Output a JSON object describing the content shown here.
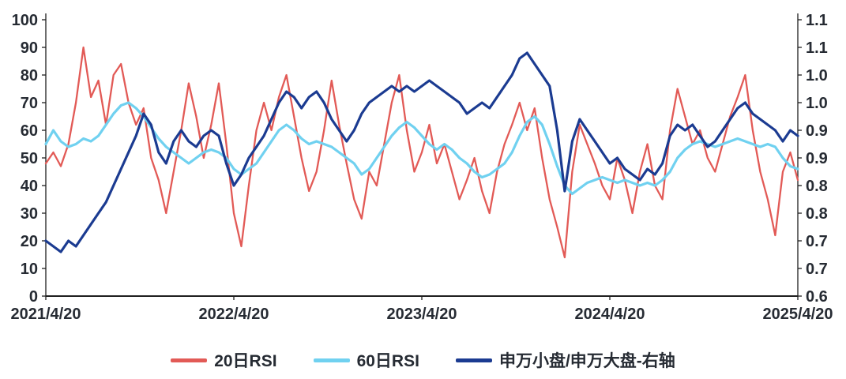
{
  "figure": {
    "background": "#ffffff"
  },
  "chart_data": {
    "type": "line",
    "title": "",
    "grid": false,
    "legend_position": "bottom",
    "axis_text_color": "#262b33",
    "axis_line_color": "#1f1f1f",
    "x_axis": {
      "tick_labels": [
        "2021/4/20",
        "2022/4/20",
        "2023/4/20",
        "2024/4/20",
        "2025/4/20"
      ],
      "tick_positions": [
        0,
        0.25,
        0.5,
        0.75,
        1
      ]
    },
    "left_axis": {
      "min": 0,
      "max": 100,
      "tick_labels_top_to_bottom": [
        "100",
        "90",
        "80",
        "70",
        "60",
        "50",
        "40",
        "30",
        "20",
        "10",
        "0"
      ]
    },
    "right_axis": {
      "min": 0.6,
      "max": 1.1,
      "tick_labels_top_to_bottom": [
        "1.1",
        "1.1",
        "1.0",
        "1.0",
        "0.9",
        "0.9",
        "0.8",
        "0.8",
        "0.7",
        "0.7",
        "0.6"
      ]
    },
    "x_spacing": "uniform, evenly spaced samples across the full x range",
    "series": [
      {
        "id": "rsi20",
        "name": "20日RSI",
        "axis": "left",
        "color": "#e25a56",
        "line_width": 2.3,
        "values": [
          48,
          52,
          47,
          55,
          70,
          90,
          72,
          78,
          62,
          80,
          84,
          70,
          62,
          68,
          50,
          42,
          30,
          45,
          60,
          77,
          65,
          50,
          62,
          77,
          55,
          30,
          18,
          40,
          60,
          70,
          60,
          72,
          80,
          65,
          50,
          38,
          45,
          60,
          78,
          62,
          48,
          35,
          28,
          45,
          40,
          55,
          70,
          80,
          60,
          45,
          52,
          62,
          48,
          55,
          45,
          35,
          42,
          50,
          38,
          30,
          45,
          55,
          62,
          70,
          60,
          68,
          50,
          35,
          25,
          14,
          45,
          62,
          55,
          48,
          40,
          35,
          50,
          42,
          30,
          45,
          55,
          40,
          35,
          60,
          75,
          65,
          55,
          60,
          50,
          45,
          55,
          65,
          72,
          80,
          60,
          45,
          35,
          22,
          45,
          52,
          42
        ]
      },
      {
        "id": "rsi60",
        "name": "60日RSI",
        "axis": "left",
        "color": "#70d1f0",
        "line_width": 3.2,
        "values": [
          55,
          60,
          56,
          54,
          55,
          57,
          56,
          58,
          62,
          66,
          69,
          70,
          68,
          65,
          61,
          57,
          54,
          52,
          50,
          48,
          50,
          52,
          53,
          52,
          50,
          46,
          44,
          46,
          48,
          52,
          56,
          60,
          62,
          60,
          57,
          55,
          56,
          55,
          54,
          52,
          50,
          48,
          44,
          46,
          50,
          54,
          58,
          61,
          63,
          61,
          58,
          55,
          53,
          55,
          53,
          50,
          48,
          45,
          43,
          44,
          46,
          48,
          52,
          58,
          63,
          65,
          62,
          55,
          47,
          40,
          37,
          39,
          41,
          42,
          43,
          42,
          41,
          42,
          41,
          40,
          41,
          40,
          42,
          45,
          50,
          53,
          55,
          56,
          55,
          54,
          55,
          56,
          57,
          56,
          55,
          54,
          55,
          54,
          50,
          47,
          46
        ]
      },
      {
        "id": "ratio",
        "name": "申万小盘/申万大盘-右轴",
        "axis": "right",
        "color": "#1b3b91",
        "line_width": 3.2,
        "values": [
          0.7,
          0.69,
          0.68,
          0.7,
          0.69,
          0.71,
          0.73,
          0.75,
          0.77,
          0.8,
          0.83,
          0.86,
          0.89,
          0.93,
          0.91,
          0.86,
          0.84,
          0.88,
          0.9,
          0.88,
          0.87,
          0.89,
          0.9,
          0.89,
          0.84,
          0.8,
          0.82,
          0.85,
          0.87,
          0.89,
          0.92,
          0.95,
          0.97,
          0.96,
          0.94,
          0.96,
          0.97,
          0.95,
          0.92,
          0.9,
          0.88,
          0.9,
          0.93,
          0.95,
          0.96,
          0.97,
          0.98,
          0.97,
          0.98,
          0.97,
          0.98,
          0.99,
          0.98,
          0.97,
          0.96,
          0.95,
          0.93,
          0.94,
          0.95,
          0.94,
          0.96,
          0.98,
          1.0,
          1.03,
          1.04,
          1.02,
          1.0,
          0.98,
          0.9,
          0.79,
          0.88,
          0.92,
          0.9,
          0.88,
          0.86,
          0.84,
          0.85,
          0.83,
          0.82,
          0.81,
          0.83,
          0.82,
          0.84,
          0.89,
          0.91,
          0.9,
          0.91,
          0.89,
          0.87,
          0.88,
          0.9,
          0.92,
          0.94,
          0.95,
          0.93,
          0.92,
          0.91,
          0.9,
          0.88,
          0.9,
          0.89
        ]
      }
    ]
  }
}
